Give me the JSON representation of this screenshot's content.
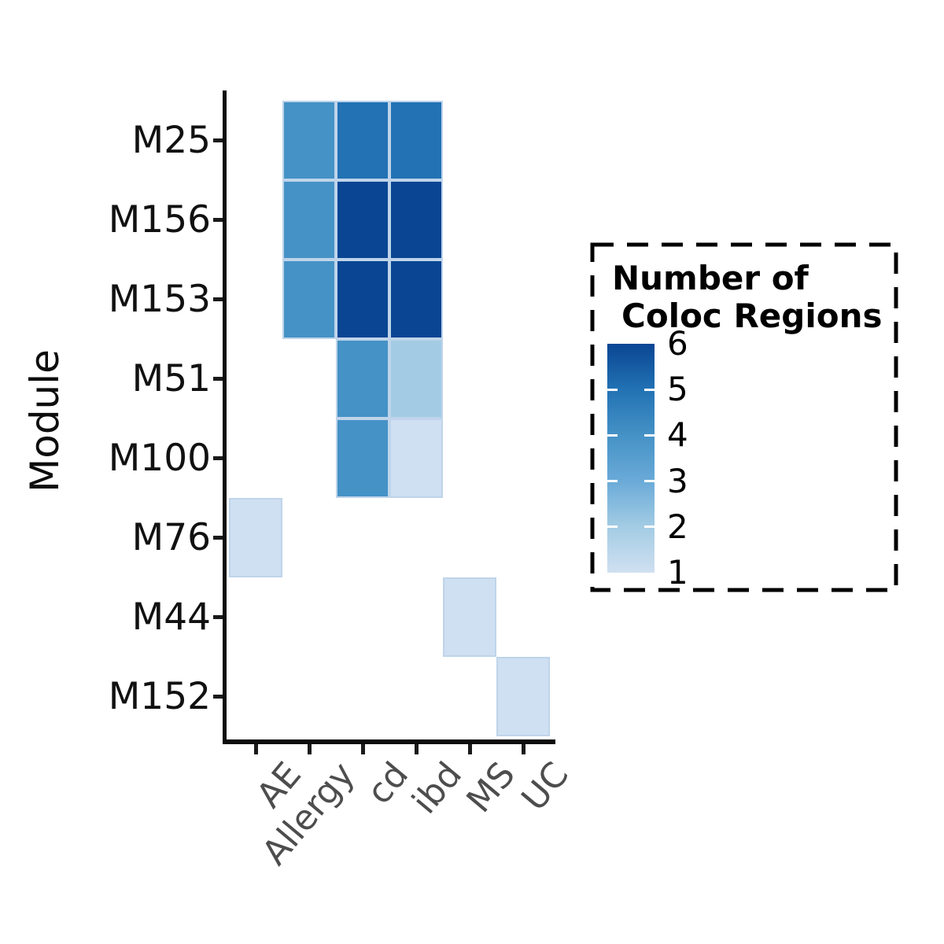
{
  "chart_data": {
    "type": "heatmap",
    "ylabel": "Module",
    "xlabel": "",
    "title": "",
    "x_categories": [
      "AE",
      "Allergy",
      "cd",
      "ibd",
      "MS",
      "UC"
    ],
    "y_categories": [
      "M25",
      "M156",
      "M153",
      "M51",
      "M100",
      "M76",
      "M44",
      "M152"
    ],
    "cells": [
      {
        "module": "M25",
        "trait": "Allergy",
        "value": 4
      },
      {
        "module": "M25",
        "trait": "cd",
        "value": 5
      },
      {
        "module": "M25",
        "trait": "ibd",
        "value": 5
      },
      {
        "module": "M156",
        "trait": "Allergy",
        "value": 4
      },
      {
        "module": "M156",
        "trait": "cd",
        "value": 6
      },
      {
        "module": "M156",
        "trait": "ibd",
        "value": 6
      },
      {
        "module": "M153",
        "trait": "Allergy",
        "value": 4
      },
      {
        "module": "M153",
        "trait": "cd",
        "value": 6
      },
      {
        "module": "M153",
        "trait": "ibd",
        "value": 6
      },
      {
        "module": "M51",
        "trait": "cd",
        "value": 4
      },
      {
        "module": "M51",
        "trait": "ibd",
        "value": 2
      },
      {
        "module": "M100",
        "trait": "cd",
        "value": 4
      },
      {
        "module": "M100",
        "trait": "ibd",
        "value": 1
      },
      {
        "module": "M76",
        "trait": "AE",
        "value": 1
      },
      {
        "module": "M44",
        "trait": "MS",
        "value": 1
      },
      {
        "module": "M152",
        "trait": "UC",
        "value": 1
      }
    ],
    "value_colors": {
      "1": "#cfe0f2",
      "2": "#a3cce4",
      "3": "#6aaad8",
      "4": "#4592c6",
      "5": "#2272b4",
      "6": "#0a4593"
    },
    "colormap_name": "Blues",
    "legend": {
      "title_line1": "Number of",
      "title_line2": "Coloc Regions",
      "ticks": [
        6,
        5,
        4,
        3,
        2,
        1
      ],
      "min": 1,
      "max": 6,
      "gradient_top_to_bottom": [
        "#0a4593",
        "#2272b4",
        "#4592c6",
        "#6aaad8",
        "#a3cce4",
        "#d0e0f1"
      ]
    },
    "grid": false,
    "legend_position": "right",
    "axis_color": "#0d0d0d",
    "x_label_color": "#4d4d4d",
    "y_label_color": "#111111"
  }
}
